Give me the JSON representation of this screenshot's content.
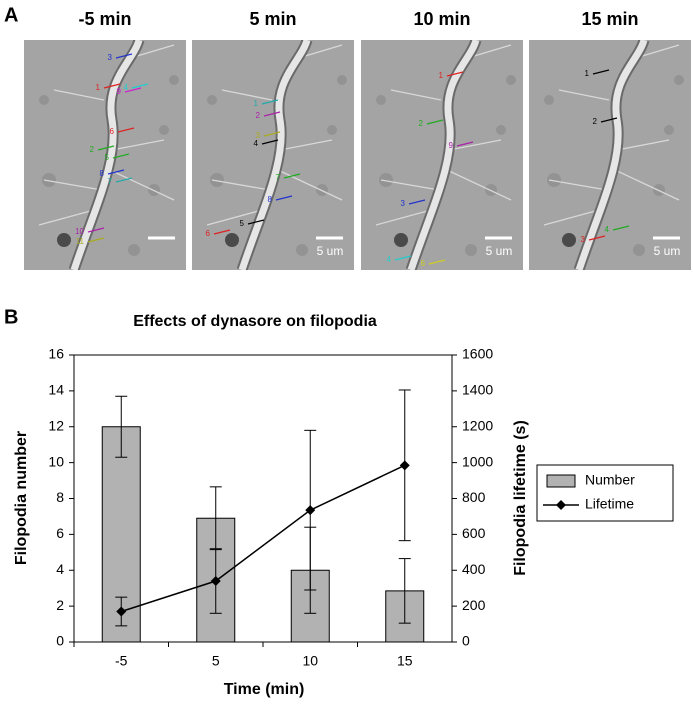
{
  "panel_labels": [
    "A",
    "B"
  ],
  "images": [
    {
      "title": "-5 min",
      "labels": [
        {
          "text": "3",
          "color": "#2233cc"
        },
        {
          "text": "1",
          "color": "#dd2222"
        },
        {
          "text": "9",
          "color": "#cc22cc"
        },
        {
          "text": "4",
          "color": "#22cccc"
        },
        {
          "text": "6",
          "color": "#dd2222"
        },
        {
          "text": "2",
          "color": "#22aa22"
        },
        {
          "text": "5",
          "color": "#22aa22"
        },
        {
          "text": "8",
          "color": "#2233cc"
        },
        {
          "text": "7",
          "color": "#22aaaa"
        },
        {
          "text": "10",
          "color": "#aa22aa"
        },
        {
          "text": "11",
          "color": "#aaaa22"
        }
      ]
    },
    {
      "title": "5 min",
      "scale_bar": "5 um",
      "labels": [
        {
          "text": "1",
          "color": "#22aaaa"
        },
        {
          "text": "2",
          "color": "#aa22aa"
        },
        {
          "text": "3",
          "color": "#aaaa22"
        },
        {
          "text": "4",
          "color": "#000000"
        },
        {
          "text": "7",
          "color": "#22aa22"
        },
        {
          "text": "8",
          "color": "#2233cc"
        },
        {
          "text": "5",
          "color": "#000000"
        },
        {
          "text": "6",
          "color": "#dd2222"
        }
      ]
    },
    {
      "title": "10 min",
      "scale_bar": "5 um",
      "labels": [
        {
          "text": "1",
          "color": "#dd2222"
        },
        {
          "text": "2",
          "color": "#22aa22"
        },
        {
          "text": "9",
          "color": "#aa22aa"
        },
        {
          "text": "3",
          "color": "#2233cc"
        },
        {
          "text": "4",
          "color": "#22cccc"
        },
        {
          "text": "6",
          "color": "#cccc22"
        }
      ]
    },
    {
      "title": "15 min",
      "scale_bar": "5 um",
      "labels": [
        {
          "text": "1",
          "color": "#000000"
        },
        {
          "text": "2",
          "color": "#000000"
        },
        {
          "text": "4",
          "color": "#22aa22"
        },
        {
          "text": "3",
          "color": "#dd2222"
        }
      ]
    }
  ],
  "chart_data": {
    "type": "bar",
    "title": "Effects of dynasore on filopodia",
    "x_label": "Time (min)",
    "y_label": "Filopodia number",
    "y2_label": "Filopodia lifetime (s)",
    "categories": [
      "-5",
      "5",
      "10",
      "15"
    ],
    "series": [
      {
        "name": "Number",
        "type": "bar",
        "color": "#b2b2b2",
        "values": [
          12,
          6.9,
          4,
          2.85
        ],
        "errors": [
          1.7,
          1.75,
          2.4,
          1.8
        ]
      },
      {
        "name": "Lifetime",
        "type": "line",
        "axis": "y2",
        "color": "#000000",
        "values": [
          170,
          340,
          735,
          985
        ],
        "errors": [
          80,
          180,
          445,
          420
        ]
      }
    ],
    "ylim": [
      0,
      16
    ],
    "yticks": [
      0,
      2,
      4,
      6,
      8,
      10,
      12,
      14,
      16
    ],
    "y2lim": [
      0,
      1600
    ],
    "y2ticks": [
      0,
      200,
      400,
      600,
      800,
      1000,
      1200,
      1400,
      1600
    ],
    "legend": "right"
  }
}
